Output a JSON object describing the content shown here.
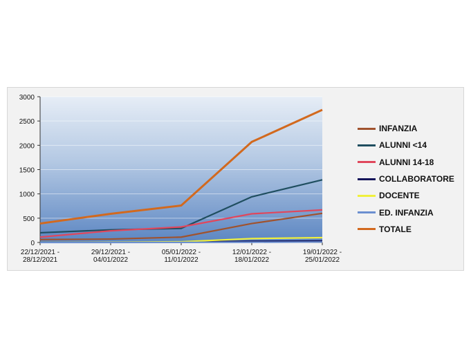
{
  "chart_data": {
    "type": "line",
    "title": "",
    "xlabel": "",
    "ylabel": "",
    "ylim": [
      0,
      3000
    ],
    "yticks": [
      "0",
      "500",
      "1000",
      "1500",
      "2000",
      "2500",
      "3000"
    ],
    "categories": [
      [
        "22/12/2021 -",
        "28/12/2021"
      ],
      [
        "29/12/2021 -",
        "04/01/2022"
      ],
      [
        "05/01/2022 -",
        "11/01/2022"
      ],
      [
        "12/01/2022 -",
        "18/01/2022"
      ],
      [
        "19/01/2022 -",
        "25/01/2022"
      ]
    ],
    "legend_position": "right",
    "background": "gradient-blue",
    "series": [
      {
        "name": "INFANZIA",
        "color": "#a0522d",
        "values": [
          60,
          70,
          110,
          390,
          600
        ]
      },
      {
        "name": "ALUNNI <14",
        "color": "#1f4e5f",
        "values": [
          200,
          260,
          290,
          940,
          1290
        ]
      },
      {
        "name": "ALUNNI 14-18",
        "color": "#e0475c",
        "values": [
          110,
          240,
          320,
          590,
          670
        ]
      },
      {
        "name": "COLLABORATORE",
        "color": "#14145a",
        "values": [
          5,
          5,
          10,
          25,
          30
        ]
      },
      {
        "name": "DOCENTE",
        "color": "#f0f03c",
        "values": [
          2,
          5,
          15,
          80,
          100
        ]
      },
      {
        "name": "ED. INFANZIA",
        "color": "#6b8fd0",
        "values": [
          0,
          0,
          2,
          5,
          10
        ]
      },
      {
        "name": "TOTALE",
        "color": "#d2691e",
        "values": [
          390,
          590,
          760,
          2070,
          2730
        ]
      }
    ]
  }
}
